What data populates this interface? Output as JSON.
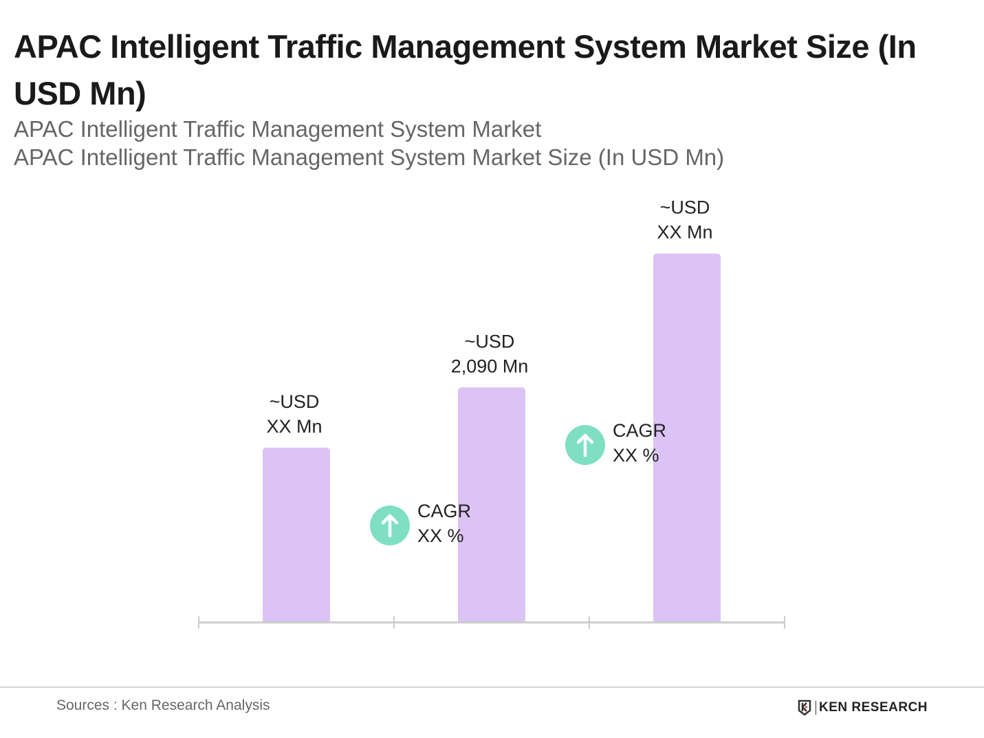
{
  "chart_data": {
    "type": "bar",
    "title": "APAC Intelligent Traffic Management System Market Size (In USD Mn)",
    "subtitle_lines": [
      "APAC Intelligent Traffic Management System Market",
      "APAC Intelligent Traffic Management System Market Size (In USD Mn)"
    ],
    "categories": [
      "",
      "",
      ""
    ],
    "values": [
      1554,
      2090,
      3280
    ],
    "data_labels": [
      [
        "~USD",
        "XX Mn"
      ],
      [
        "~USD",
        "2,090 Mn"
      ],
      [
        "~USD",
        "XX Mn"
      ]
    ],
    "annotations": [
      {
        "icon": "arrow-up-icon",
        "lines": [
          "CAGR",
          "XX %"
        ]
      },
      {
        "icon": "arrow-up-icon",
        "lines": [
          "CAGR",
          "XX %"
        ]
      }
    ],
    "xlabel": "",
    "ylabel": "",
    "ylim": [
      0,
      3700
    ],
    "grid": false,
    "legend": "none",
    "colors": {
      "bar": "#dcc3f5",
      "cagr_circle": "#7fdfc3",
      "axis": "#cccccc"
    }
  },
  "footer": {
    "source": "Sources : Ken Research Analysis",
    "logo": "KEN RESEARCH"
  }
}
